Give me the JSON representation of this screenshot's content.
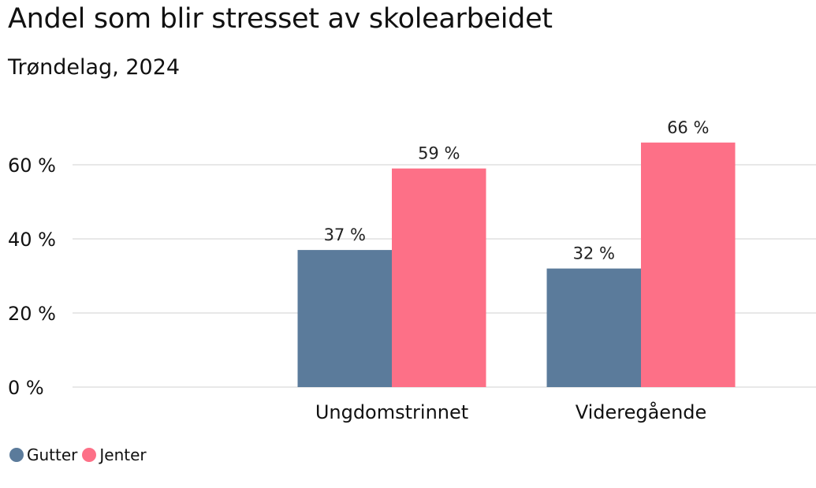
{
  "chart_data": {
    "type": "bar",
    "title": "Andel som blir stresset av skolearbeidet",
    "subtitle": "Trøndelag, 2024",
    "xlabel": "",
    "ylabel": "",
    "categories": [
      "Ungdomstrinnet",
      "Videregående"
    ],
    "series": [
      {
        "name": "Gutter",
        "color": "#5b7b9b",
        "values": [
          37,
          32
        ],
        "labels": [
          "37 %",
          "32 %"
        ]
      },
      {
        "name": "Jenter",
        "color": "#fd7087",
        "values": [
          59,
          66
        ],
        "labels": [
          "59 %",
          "66 %"
        ]
      }
    ],
    "yticks": [
      0,
      20,
      40,
      60
    ],
    "ytick_labels": [
      "0 %",
      "20 %",
      "40 %",
      "60 %"
    ],
    "ylim": [
      0,
      70
    ],
    "grid": true,
    "legend_position": "bottom-left"
  }
}
